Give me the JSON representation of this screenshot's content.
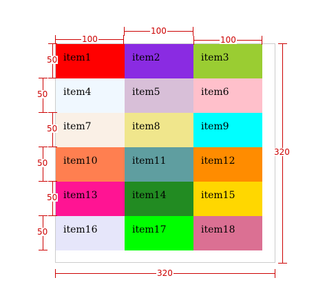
{
  "grid": {
    "items": [
      {
        "label": "item1",
        "color": "#ff0000"
      },
      {
        "label": "item2",
        "color": "#8a2be2"
      },
      {
        "label": "item3",
        "color": "#9acd32"
      },
      {
        "label": "item4",
        "color": "#f0f8ff"
      },
      {
        "label": "item5",
        "color": "#d8bfd8"
      },
      {
        "label": "item6",
        "color": "#ffc0cb"
      },
      {
        "label": "item7",
        "color": "#faf0e6"
      },
      {
        "label": "item8",
        "color": "#f0e68c"
      },
      {
        "label": "item9",
        "color": "#00ffff"
      },
      {
        "label": "item10",
        "color": "#ff7f50"
      },
      {
        "label": "item11",
        "color": "#5f9ea0"
      },
      {
        "label": "item12",
        "color": "#ff8c00"
      },
      {
        "label": "item13",
        "color": "#ff1493"
      },
      {
        "label": "item14",
        "color": "#228b22"
      },
      {
        "label": "item15",
        "color": "#ffd700"
      },
      {
        "label": "item16",
        "color": "#e6e6fa"
      },
      {
        "label": "item17",
        "color": "#00ff00"
      },
      {
        "label": "item18",
        "color": "#db7093"
      }
    ]
  },
  "dimensions": {
    "column_widths": [
      "100",
      "100",
      "100"
    ],
    "row_heights": [
      "50",
      "50",
      "50",
      "50",
      "50",
      "50"
    ],
    "container_width": "320",
    "container_height": "320",
    "color": "#cc0000"
  }
}
